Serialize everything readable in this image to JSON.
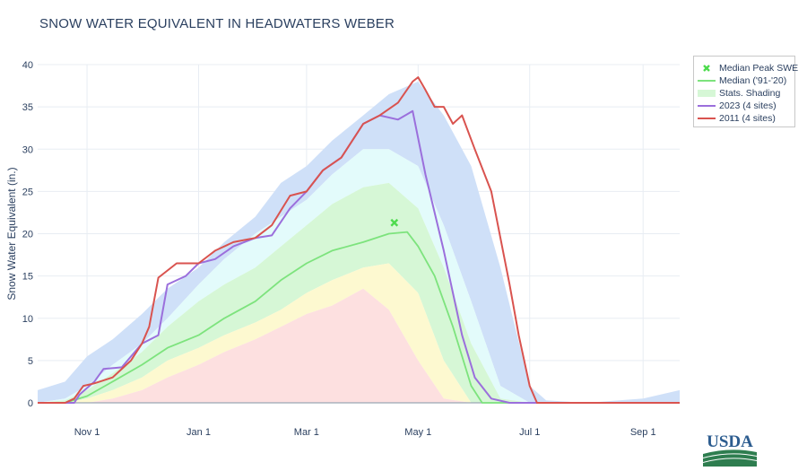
{
  "title": "SNOW WATER EQUIVALENT IN HEADWATERS WEBER",
  "logo_text": "USDA",
  "colors": {
    "median": "#7de37d",
    "y2023": "#9b6fdc",
    "y2011": "#d9534f",
    "peak": "#4ddb4d",
    "band_max": "#cfe0f8",
    "band_90": "#e3fbfb",
    "band_70": "#d6f7d6",
    "band_30": "#fdf9d0",
    "band_10": "#fde0e0"
  },
  "chart_data": {
    "type": "area",
    "title": "SNOW WATER EQUIVALENT IN HEADWATERS WEBER",
    "ylabel": "Snow Water Equivalent (in.)",
    "xlabel": "",
    "ylim": [
      0,
      40
    ],
    "xlim": [
      "Oct 5",
      "Sep 21"
    ],
    "yticks": [
      "0",
      "5",
      "10",
      "15",
      "20",
      "25",
      "30",
      "35",
      "40"
    ],
    "xticks": [
      "Nov 1",
      "Jan 1",
      "Mar 1",
      "May 1",
      "Jul 1",
      "Sep 1"
    ],
    "grid": true,
    "legend_position": "top-right",
    "legend": [
      "Median Peak SWE",
      "Median ('91-'20)",
      "Stats. Shading",
      "2023 (4 sites)",
      "2011 (4 sites)"
    ],
    "median_peak": {
      "x": "Apr 18",
      "y": 21.3
    },
    "bands": {
      "x": [
        "Oct 5",
        "Oct 20",
        "Nov 1",
        "Nov 15",
        "Dec 1",
        "Dec 15",
        "Jan 1",
        "Jan 15",
        "Feb 1",
        "Feb 15",
        "Mar 1",
        "Mar 15",
        "Apr 1",
        "Apr 15",
        "May 1",
        "May 15",
        "May 30",
        "Jun 15",
        "Jul 1",
        "Jul 10",
        "Aug 1",
        "Sep 1",
        "Sep 21"
      ],
      "max": [
        1.5,
        2.5,
        5.5,
        7.5,
        10.5,
        13.5,
        16,
        19,
        22,
        26,
        28,
        31,
        34,
        36.5,
        38,
        34,
        28,
        16,
        2,
        0.3,
        0,
        0.5,
        1.5
      ],
      "p90": [
        0,
        0.5,
        2,
        4.5,
        7,
        10,
        14,
        17,
        20,
        22,
        24,
        27,
        30,
        30,
        28,
        21,
        12,
        2,
        0,
        0,
        0,
        0,
        0
      ],
      "p70": [
        0,
        0.3,
        1.5,
        3.5,
        6,
        9,
        12,
        14,
        16,
        18.5,
        21,
        23.5,
        25.5,
        26,
        23,
        16,
        7,
        0.5,
        0,
        0,
        0,
        0,
        0
      ],
      "p50": [
        0,
        0,
        1,
        2.5,
        4.5,
        6.5,
        8,
        10,
        12,
        14.5,
        16.5,
        18.5,
        19.5,
        20,
        17,
        9,
        1.5,
        0,
        0,
        0,
        0,
        0,
        0
      ],
      "p30": [
        0,
        0,
        0.5,
        1.5,
        3,
        5,
        6.5,
        8,
        9.5,
        11,
        13,
        14.5,
        16,
        16.5,
        13,
        5,
        0,
        0,
        0,
        0,
        0,
        0,
        0
      ],
      "p10": [
        0,
        0,
        0,
        0.5,
        1.5,
        3,
        4.5,
        6,
        7.5,
        9,
        10.5,
        11.5,
        13.5,
        11,
        5,
        0.5,
        0,
        0,
        0,
        0,
        0,
        0,
        0
      ]
    },
    "series": [
      {
        "name": "Median ('91-'20)",
        "x": [
          "Oct 5",
          "Oct 20",
          "Nov 1",
          "Nov 15",
          "Dec 1",
          "Dec 15",
          "Jan 1",
          "Jan 15",
          "Feb 1",
          "Feb 15",
          "Mar 1",
          "Mar 15",
          "Apr 1",
          "Apr 15",
          "Apr 25",
          "May 1",
          "May 10",
          "May 20",
          "May 30",
          "Jun 5",
          "Jul 1",
          "Sep 21"
        ],
        "values": [
          0,
          0,
          0.8,
          2.5,
          4.5,
          6.5,
          8,
          10,
          12,
          14.5,
          16.5,
          18,
          19,
          20,
          20.2,
          18.5,
          15,
          9,
          2,
          0,
          0,
          0
        ]
      },
      {
        "name": "2023 (4 sites)",
        "x": [
          "Oct 5",
          "Oct 25",
          "Oct 28",
          "Nov 5",
          "Nov 10",
          "Nov 20",
          "Dec 1",
          "Dec 10",
          "Dec 15",
          "Dec 25",
          "Jan 1",
          "Jan 10",
          "Jan 20",
          "Feb 1",
          "Feb 10",
          "Feb 20",
          "Mar 1",
          "Mar 10",
          "Mar 20",
          "Apr 1",
          "Apr 10",
          "Apr 20",
          "Apr 28",
          "May 5",
          "May 15",
          "May 25",
          "Jun 1",
          "Jun 10",
          "Jun 20",
          "Sep 21"
        ],
        "values": [
          0,
          0,
          1,
          2.5,
          4,
          4.2,
          7,
          8,
          14,
          15,
          16.5,
          17,
          18.5,
          19.5,
          19.8,
          23,
          25,
          27.5,
          29,
          33,
          34,
          33.5,
          34.5,
          27,
          18,
          8,
          3,
          0.5,
          0,
          0
        ]
      },
      {
        "name": "2011 (4 sites)",
        "x": [
          "Oct 5",
          "Oct 20",
          "Oct 25",
          "Oct 30",
          "Nov 5",
          "Nov 15",
          "Nov 25",
          "Dec 1",
          "Dec 5",
          "Dec 10",
          "Dec 20",
          "Jan 1",
          "Jan 10",
          "Jan 20",
          "Feb 1",
          "Feb 10",
          "Feb 20",
          "Mar 1",
          "Mar 10",
          "Mar 20",
          "Apr 1",
          "Apr 10",
          "Apr 20",
          "Apr 28",
          "May 1",
          "May 5",
          "May 10",
          "May 15",
          "May 20",
          "May 25",
          "Jun 1",
          "Jun 10",
          "Jun 20",
          "Jun 25",
          "Jul 1",
          "Jul 5",
          "Sep 21"
        ],
        "values": [
          0,
          0,
          0.5,
          2,
          2.3,
          3,
          5,
          7,
          9,
          14.8,
          16.5,
          16.5,
          18,
          19,
          19.5,
          21,
          24.5,
          25,
          27.5,
          29,
          33,
          34,
          35.5,
          38,
          38.5,
          37,
          35,
          35,
          33,
          34,
          30,
          25,
          14,
          8,
          2,
          0,
          0
        ]
      }
    ]
  }
}
